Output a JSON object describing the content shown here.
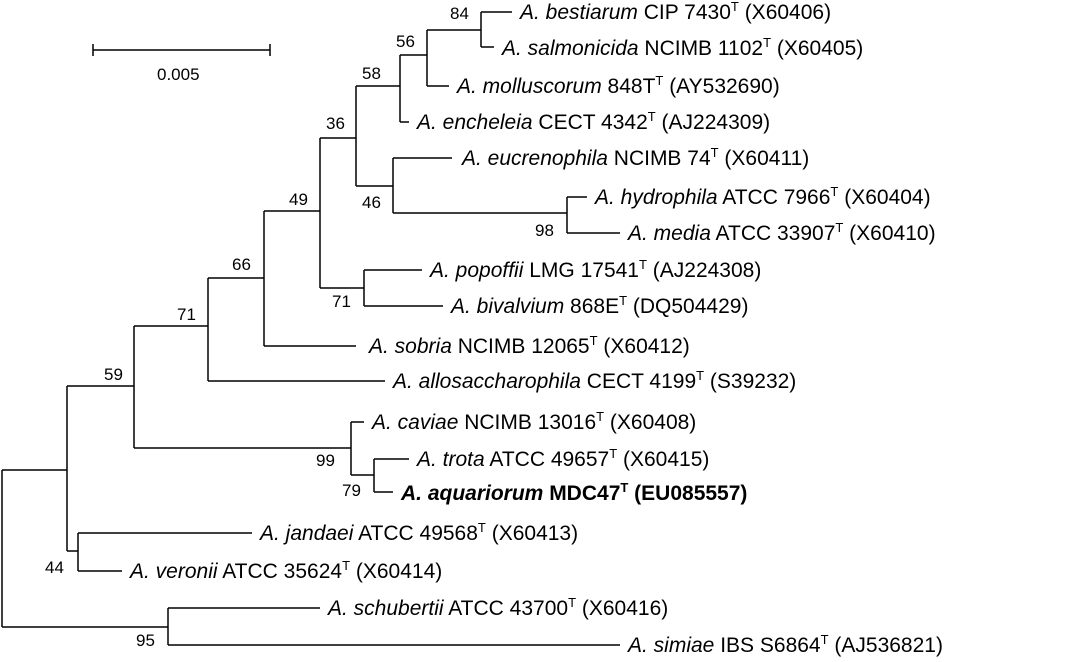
{
  "scale_bar": {
    "label": "0.005"
  },
  "taxa": [
    {
      "id": "bestiarum",
      "genus": "A.",
      "species": "bestiarum",
      "strain": "CIP 7430",
      "sup": "T",
      "accession": "(X60406)",
      "bold": false
    },
    {
      "id": "salmonicida",
      "genus": "A.",
      "species": "salmonicida",
      "strain": "NCIMB 1102",
      "sup": "T",
      "accession": "(X60405)",
      "bold": false
    },
    {
      "id": "molluscorum",
      "genus": "A.",
      "species": "molluscorum",
      "strain": "848T",
      "sup": "T",
      "accession": "(AY532690)",
      "bold": false
    },
    {
      "id": "encheleia",
      "genus": "A.",
      "species": "encheleia",
      "strain": "CECT 4342",
      "sup": "T",
      "accession": "(AJ224309)",
      "bold": false
    },
    {
      "id": "eucrenophila",
      "genus": "A.",
      "species": "eucrenophila",
      "strain": "NCIMB 74",
      "sup": "T",
      "accession": "(X60411)",
      "bold": false
    },
    {
      "id": "hydrophila",
      "genus": "A.",
      "species": "hydrophila",
      "strain": "ATCC 7966",
      "sup": "T",
      "accession": "(X60404)",
      "bold": false
    },
    {
      "id": "media",
      "genus": "A.",
      "species": "media",
      "strain": "ATCC 33907",
      "sup": "T",
      "accession": "(X60410)",
      "bold": false
    },
    {
      "id": "popoffii",
      "genus": "A.",
      "species": "popoffii",
      "strain": "LMG 17541",
      "sup": "T",
      "accession": "(AJ224308)",
      "bold": false
    },
    {
      "id": "bivalvium",
      "genus": "A.",
      "species": "bivalvium",
      "strain": "868E",
      "sup": "T",
      "accession": "(DQ504429)",
      "bold": false
    },
    {
      "id": "sobria",
      "genus": "A.",
      "species": "sobria",
      "strain": "NCIMB 12065",
      "sup": "T",
      "accession": "(X60412)",
      "bold": false
    },
    {
      "id": "allosaccharophila",
      "genus": "A.",
      "species": "allosaccharophila",
      "strain": "CECT 4199",
      "sup": "T",
      "accession": "(S39232)",
      "bold": false
    },
    {
      "id": "caviae",
      "genus": "A.",
      "species": "caviae",
      "strain": "NCIMB 13016",
      "sup": "T",
      "accession": "(X60408)",
      "bold": false
    },
    {
      "id": "trota",
      "genus": "A.",
      "species": "trota",
      "strain": "ATCC 49657",
      "sup": "T",
      "accession": "(X60415)",
      "bold": false
    },
    {
      "id": "aquariorum",
      "genus": "A.",
      "species": "aquariorum",
      "strain": "MDC47",
      "sup": "T",
      "accession": "(EU085557)",
      "bold": true
    },
    {
      "id": "jandaei",
      "genus": "A.",
      "species": "jandaei",
      "strain": "ATCC 49568",
      "sup": "T",
      "accession": "(X60413)",
      "bold": false
    },
    {
      "id": "veronii",
      "genus": "A.",
      "species": "veronii",
      "strain": "ATCC 35624",
      "sup": "T",
      "accession": "(X60414)",
      "bold": false
    },
    {
      "id": "schubertii",
      "genus": "A.",
      "species": "schubertii",
      "strain": "ATCC 43700",
      "sup": "T",
      "accession": "(X60416)",
      "bold": false
    },
    {
      "id": "simiae",
      "genus": "A.",
      "species": "simiae",
      "strain": "IBS S6864",
      "sup": "T",
      "accession": "(AJ536821)",
      "bold": false
    }
  ],
  "bootstrap": {
    "bestiarum_salmonicida": "84",
    "with_molluscorum": "56",
    "with_encheleia": "58",
    "salmonicida_clade_vs_eucrenophila": "36",
    "eucrenophila_clade": "46",
    "hydrophila_media": "98",
    "popoffii_bivalvium": "71",
    "big_clade": "49",
    "with_sobria": "66",
    "with_allosaccharophila": "71",
    "with_caviae_clade": "59",
    "caviae_trota_aquariorum": "99",
    "trota_aquariorum": "79",
    "jandaei_veronii": "44",
    "schubertii_simiae": "95"
  }
}
